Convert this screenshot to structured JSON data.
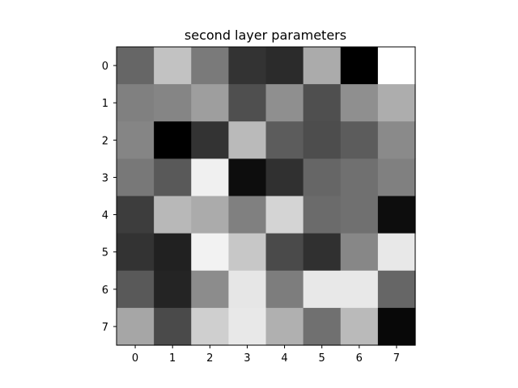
{
  "chart_data": {
    "type": "heatmap",
    "title": "second layer parameters",
    "xlabel": "",
    "ylabel": "",
    "colormap": "gray",
    "x_ticks": [
      "0",
      "1",
      "2",
      "3",
      "4",
      "5",
      "6",
      "7"
    ],
    "y_ticks": [
      "0",
      "1",
      "2",
      "3",
      "4",
      "5",
      "6",
      "7"
    ],
    "grid": false,
    "value_range": [
      0,
      1
    ],
    "values": [
      [
        0.4,
        0.76,
        0.48,
        0.2,
        0.17,
        0.67,
        0.0,
        1.0
      ],
      [
        0.5,
        0.52,
        0.62,
        0.31,
        0.56,
        0.31,
        0.56,
        0.68
      ],
      [
        0.52,
        0.0,
        0.2,
        0.73,
        0.36,
        0.3,
        0.36,
        0.54
      ],
      [
        0.47,
        0.35,
        0.94,
        0.05,
        0.19,
        0.4,
        0.44,
        0.5
      ],
      [
        0.24,
        0.72,
        0.67,
        0.5,
        0.83,
        0.42,
        0.44,
        0.05
      ],
      [
        0.2,
        0.13,
        0.95,
        0.78,
        0.29,
        0.19,
        0.53,
        0.91
      ],
      [
        0.35,
        0.14,
        0.55,
        0.9,
        0.49,
        0.91,
        0.91,
        0.4
      ],
      [
        0.65,
        0.29,
        0.81,
        0.91,
        0.69,
        0.44,
        0.73,
        0.03
      ]
    ]
  }
}
